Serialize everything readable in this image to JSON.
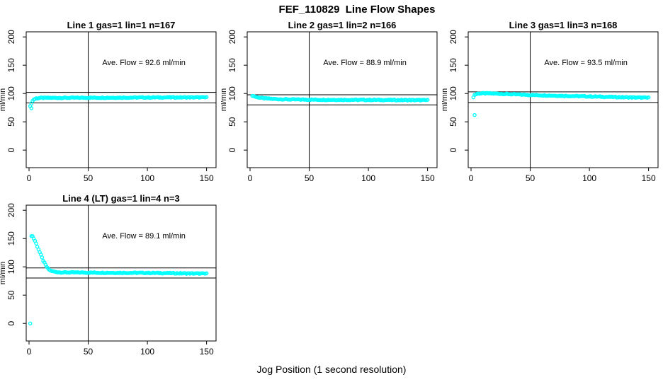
{
  "title": "FEF_110829  Line Flow Shapes",
  "xlabel_global": "Jog Position (1 second resolution)",
  "colors": {
    "points": "#00ffff",
    "axis": "#000000",
    "background": "#ffffff"
  },
  "chart_data": [
    {
      "type": "scatter",
      "title": "Line 1 gas=1 lin=1 n=167",
      "n": 167,
      "avg_flow": 92.6,
      "annotation": "Ave. Flow =  92.6  ml/min",
      "ylabel": "ml/min",
      "x_ticks": [
        0,
        50,
        100,
        150
      ],
      "y_ticks": [
        0,
        50,
        100,
        150,
        200
      ],
      "xlim": [
        -2.4,
        158
      ],
      "ylim": [
        -31,
        209
      ],
      "vline_x": 50,
      "hlines": [
        101.9,
        83.3
      ],
      "outliers": [
        [
          2,
          74
        ]
      ],
      "profile": [
        [
          1,
          77
        ],
        [
          2,
          83
        ],
        [
          3,
          87
        ],
        [
          4,
          89.5
        ],
        [
          6,
          91.5
        ],
        [
          10,
          92.3
        ],
        [
          40,
          92.5
        ],
        [
          80,
          92.8
        ],
        [
          120,
          93.2
        ],
        [
          150,
          93.2
        ]
      ],
      "x_end": 150,
      "x_step": 1
    },
    {
      "type": "scatter",
      "title": "Line 2 gas=1 lin=2 n=166",
      "n": 166,
      "avg_flow": 88.9,
      "annotation": "Ave. Flow =  88.9  ml/min",
      "ylabel": "ml/min",
      "x_ticks": [
        0,
        50,
        100,
        150
      ],
      "y_ticks": [
        0,
        50,
        100,
        150,
        200
      ],
      "xlim": [
        -2.4,
        158
      ],
      "ylim": [
        -31,
        209
      ],
      "vline_x": 50,
      "hlines": [
        97.8,
        80.0
      ],
      "outliers": [],
      "profile": [
        [
          2,
          96.5
        ],
        [
          3,
          95.5
        ],
        [
          5,
          94
        ],
        [
          8,
          92.8
        ],
        [
          12,
          91.5
        ],
        [
          20,
          90.3
        ],
        [
          35,
          89.5
        ],
        [
          60,
          89
        ],
        [
          100,
          88.7
        ],
        [
          150,
          88.3
        ]
      ],
      "x_end": 150,
      "x_step": 1
    },
    {
      "type": "scatter",
      "title": "Line 3 gas=1 lin=3 n=168",
      "n": 168,
      "avg_flow": 93.5,
      "annotation": "Ave. Flow =  93.5  ml/min",
      "ylabel": "ml/min",
      "x_ticks": [
        0,
        50,
        100,
        150
      ],
      "y_ticks": [
        0,
        50,
        100,
        150,
        200
      ],
      "xlim": [
        -2.4,
        158
      ],
      "ylim": [
        -31,
        209
      ],
      "vline_x": 50,
      "hlines": [
        102.9,
        84.2
      ],
      "outliers": [
        [
          3,
          62
        ]
      ],
      "profile": [
        [
          2,
          94
        ],
        [
          3,
          97.5
        ],
        [
          5,
          99.5
        ],
        [
          8,
          100.3
        ],
        [
          15,
          100.3
        ],
        [
          30,
          99
        ],
        [
          50,
          97.5
        ],
        [
          75,
          96
        ],
        [
          100,
          94.8
        ],
        [
          125,
          93.6
        ],
        [
          150,
          92.6
        ]
      ],
      "x_end": 150,
      "x_step": 1
    },
    {
      "type": "scatter",
      "title": "Line 4 (LT) gas=1 lin=4 n=3",
      "n": 3,
      "avg_flow": 89.1,
      "annotation": "Ave. Flow =  89.1  ml/min",
      "ylabel": "ml/min",
      "x_ticks": [
        0,
        50,
        100,
        150
      ],
      "y_ticks": [
        0,
        50,
        100,
        150,
        200
      ],
      "xlim": [
        -2.4,
        158
      ],
      "ylim": [
        -31,
        209
      ],
      "vline_x": 50,
      "hlines": [
        98.0,
        80.2
      ],
      "outliers": [
        [
          1,
          0
        ]
      ],
      "profile": [
        [
          2,
          155
        ],
        [
          3,
          154
        ],
        [
          4,
          150
        ],
        [
          5,
          146
        ],
        [
          6,
          141
        ],
        [
          7,
          136
        ],
        [
          8,
          131
        ],
        [
          9,
          126
        ],
        [
          10,
          121
        ],
        [
          11,
          116
        ],
        [
          12,
          111
        ],
        [
          13,
          107
        ],
        [
          14,
          103
        ],
        [
          15,
          100
        ],
        [
          16,
          97
        ],
        [
          17,
          95
        ],
        [
          18,
          93.5
        ],
        [
          20,
          92
        ],
        [
          23,
          90.8
        ],
        [
          27,
          90.2
        ],
        [
          40,
          90
        ],
        [
          70,
          89.5
        ],
        [
          100,
          89.3
        ],
        [
          150,
          88
        ]
      ],
      "x_end": 150,
      "x_step": 1
    }
  ]
}
